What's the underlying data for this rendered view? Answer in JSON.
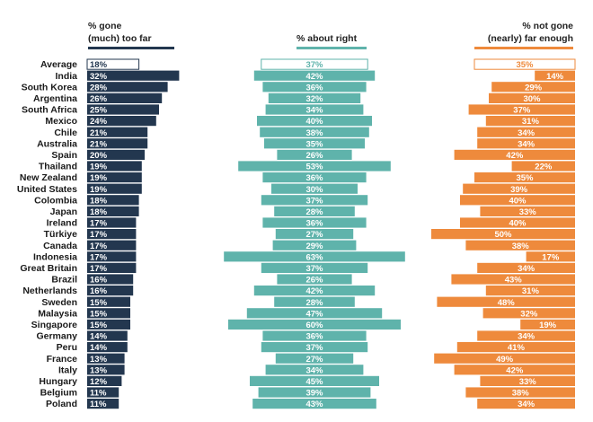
{
  "legend": {
    "gone_too_far": [
      "% gone",
      "(much) too far"
    ],
    "about_right": "% about right",
    "not_gone_far_enough": [
      "% not gone",
      "(nearly) far enough"
    ]
  },
  "colors": {
    "too_far": "#23374f",
    "about_right": "#5fb3ab",
    "not_far_enough": "#ee8a3c"
  },
  "chart_data": {
    "type": "bar",
    "layout": "diverging-horizontal",
    "categories": [
      "Average",
      "India",
      "South Korea",
      "Argentina",
      "South Africa",
      "Mexico",
      "Chile",
      "Australia",
      "Spain",
      "Thailand",
      "New Zealand",
      "United States",
      "Colombia",
      "Japan",
      "Ireland",
      "Türkiye",
      "Canada",
      "Indonesia",
      "Great Britain",
      "Brazil",
      "Netherlands",
      "Sweden",
      "Malaysia",
      "Singapore",
      "Germany",
      "Peru",
      "France",
      "Italy",
      "Hungary",
      "Belgium",
      "Poland"
    ],
    "series": [
      {
        "name": "% gone (much) too far",
        "values": [
          18,
          32,
          28,
          26,
          25,
          24,
          21,
          21,
          20,
          19,
          19,
          19,
          18,
          18,
          17,
          17,
          17,
          17,
          17,
          16,
          16,
          15,
          15,
          15,
          14,
          14,
          13,
          13,
          12,
          11,
          11
        ]
      },
      {
        "name": "% about right",
        "values": [
          37,
          42,
          36,
          32,
          34,
          40,
          38,
          35,
          26,
          53,
          36,
          30,
          37,
          28,
          36,
          27,
          29,
          63,
          37,
          26,
          42,
          28,
          47,
          60,
          36,
          37,
          27,
          34,
          45,
          39,
          43
        ]
      },
      {
        "name": "% not gone (nearly) far enough",
        "values": [
          35,
          14,
          29,
          30,
          37,
          31,
          34,
          34,
          42,
          22,
          35,
          39,
          40,
          33,
          40,
          50,
          38,
          17,
          34,
          43,
          31,
          48,
          32,
          19,
          34,
          41,
          49,
          42,
          33,
          38,
          34
        ]
      }
    ],
    "labels": {
      "too_far": [
        "18%",
        "32%",
        "28%",
        "26%",
        "25%",
        "24%",
        "21%",
        "21%",
        "20%",
        "19%",
        "19%",
        "19%",
        "18%",
        "18%",
        "17%",
        "17%",
        "17%",
        "17%",
        "17%",
        "16%",
        "16%",
        "15%",
        "15%",
        "15%",
        "14%",
        "14%",
        "13%",
        "13%",
        "12%",
        "11%",
        "11%"
      ],
      "about_right": [
        "37%",
        "42%",
        "36%",
        "32%",
        "34%",
        "40%",
        "38%",
        "35%",
        "26%",
        "53%",
        "36%",
        "30%",
        "37%",
        "28%",
        "36%",
        "27%",
        "29%",
        "63%",
        "37%",
        "26%",
        "42%",
        "28%",
        "47%",
        "60%",
        "36%",
        "37%",
        "27%",
        "34%",
        "45%",
        "39%",
        "43%"
      ],
      "not_far_enough": [
        "35%",
        "14%",
        "29%",
        "30%",
        "37%",
        "31%",
        "34%",
        "34%",
        "42%",
        "22%",
        "35%",
        "39%",
        "40%",
        "33%",
        "40%",
        "50%",
        "38%",
        "17%",
        "34%",
        "43%",
        "31%",
        "48%",
        "32%",
        "19%",
        "34%",
        "41%",
        "49%",
        "42%",
        "33%",
        "38%",
        "34%"
      ]
    },
    "highlight_first_row_outlined": true
  }
}
